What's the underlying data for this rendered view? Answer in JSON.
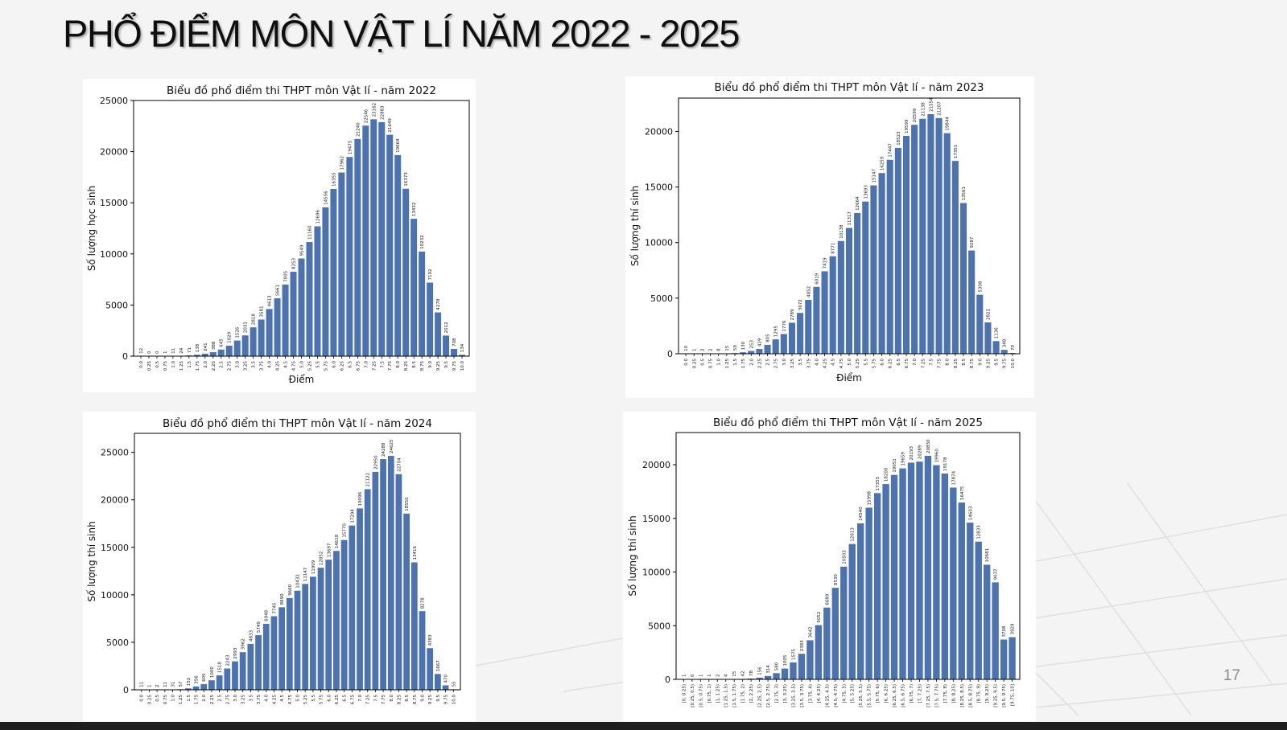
{
  "slide": {
    "title": "PHỔ ĐIỂM MÔN VẬT LÍ NĂM 2022 - 2025",
    "page_number": "17"
  },
  "theme": {
    "bar_color": "#4c72b0"
  },
  "chart_data": [
    {
      "type": "bar",
      "title": "Biểu đồ phổ điểm thi THPT môn Vật lí - năm 2022",
      "xlabel": "Điểm",
      "ylabel": "Số lượng học sinh",
      "ylim": [
        0,
        25000
      ],
      "yticks": [
        0,
        5000,
        10000,
        15000,
        20000,
        25000
      ],
      "categories": [
        "0.0",
        "0.25",
        "0.5",
        "0.75",
        "1.0",
        "1.25",
        "1.5",
        "1.75",
        "2.0",
        "2.25",
        "2.5",
        "2.75",
        "3.0",
        "3.25",
        "3.5",
        "3.75",
        "4.0",
        "4.25",
        "4.5",
        "4.75",
        "5.0",
        "5.25",
        "5.5",
        "5.75",
        "6.0",
        "6.25",
        "6.5",
        "6.75",
        "7.0",
        "7.25",
        "7.5",
        "7.75",
        "8.0",
        "8.25",
        "8.5",
        "8.75",
        "9.0",
        "9.25",
        "9.5",
        "9.75",
        "10.0"
      ],
      "values": [
        12,
        0,
        0,
        1,
        11,
        24,
        71,
        138,
        241,
        388,
        645,
        1029,
        1526,
        2031,
        2818,
        3581,
        4613,
        5661,
        7005,
        8253,
        9549,
        11160,
        12696,
        14556,
        16355,
        17962,
        19475,
        21240,
        22546,
        23162,
        22883,
        21649,
        19664,
        16373,
        13432,
        10232,
        7192,
        4278,
        2012,
        708,
        134
      ]
    },
    {
      "type": "bar",
      "title": "Biểu đồ phổ điểm thi THPT môn Vật lí - năm 2023",
      "xlabel": "Điểm",
      "ylabel": "Số lượng thí sinh",
      "ylim": [
        0,
        23000
      ],
      "yticks": [
        0,
        5000,
        10000,
        15000,
        20000
      ],
      "categories": [
        "0.0",
        "0.25",
        "0.5",
        "0.75",
        "1.0",
        "1.25",
        "1.5",
        "1.75",
        "2.0",
        "2.25",
        "2.5",
        "2.75",
        "3.0",
        "3.25",
        "3.5",
        "3.75",
        "4.0",
        "4.25",
        "4.5",
        "4.75",
        "5.0",
        "5.25",
        "5.5",
        "5.75",
        "6.0",
        "6.25",
        "6.5",
        "6.75",
        "7.0",
        "7.25",
        "7.5",
        "7.75",
        "8.0",
        "8.25",
        "8.5",
        "8.75",
        "9.0",
        "9.25",
        "9.5",
        "9.75",
        "10.0"
      ],
      "values": [
        10,
        1,
        2,
        2,
        8,
        15,
        59,
        130,
        253,
        429,
        805,
        1295,
        1776,
        2789,
        3672,
        4852,
        6019,
        7419,
        8771,
        10138,
        11317,
        12664,
        13693,
        15147,
        16259,
        17447,
        18523,
        19599,
        20599,
        21138,
        21554,
        21207,
        19844,
        17351,
        13561,
        9287,
        5308,
        2822,
        1136,
        348,
        70
      ]
    },
    {
      "type": "bar",
      "title": "Biểu đồ phổ điểm thi THPT môn Vật lí - năm 2024",
      "xlabel": "",
      "ylabel": "Số lượng thí sinh",
      "ylim": [
        0,
        27000
      ],
      "yticks": [
        0,
        5000,
        10000,
        15000,
        20000,
        25000
      ],
      "categories": [
        "0.0",
        "0.25",
        "0.5",
        "0.75",
        "1.0",
        "1.25",
        "1.5",
        "1.75",
        "2.0",
        "2.25",
        "2.5",
        "2.75",
        "3.0",
        "3.25",
        "3.5",
        "3.75",
        "4.0",
        "4.25",
        "4.5",
        "4.75",
        "5.0",
        "5.25",
        "5.5",
        "5.75",
        "6.0",
        "6.25",
        "6.5",
        "6.75",
        "7.0",
        "7.25",
        "7.5",
        "7.75",
        "8.0",
        "8.25",
        "8.5",
        "8.75",
        "9.0",
        "9.25",
        "9.5",
        "9.75",
        "10.0"
      ],
      "values": [
        11,
        1,
        2,
        11,
        31,
        57,
        152,
        356,
        605,
        1000,
        1518,
        2243,
        2993,
        3962,
        4833,
        5749,
        6948,
        7745,
        8690,
        9660,
        10432,
        11147,
        11909,
        12852,
        13697,
        14618,
        15770,
        17294,
        19096,
        21122,
        22950,
        24288,
        24625,
        22704,
        18550,
        13416,
        8278,
        4383,
        1667,
        470,
        55
      ]
    },
    {
      "type": "bar",
      "title": "Biểu đồ phổ điểm thi THPT môn Vật lí - năm 2025",
      "xlabel": "",
      "ylabel": "Số lượng thí sinh",
      "ylim": [
        0,
        23000
      ],
      "yticks": [
        0,
        5000,
        10000,
        15000,
        20000
      ],
      "categories": [
        "[0, 0.25)",
        "[0.25, 0.5)",
        "[0.5, 0.75)",
        "[0.75, 1)",
        "[1, 1.25)",
        "[1.25, 1.5)",
        "[1.5, 1.75)",
        "[1.75, 2)",
        "[2, 2.25)",
        "[2.25, 2.5)",
        "[2.5, 2.75)",
        "[2.75, 3)",
        "[3, 3.25)",
        "[3.25, 3.5)",
        "[3.5, 3.75)",
        "[3.75, 4)",
        "[4, 4.25)",
        "[4.25, 4.5)",
        "[4.5, 4.75)",
        "[4.75, 5)",
        "[5, 5.25)",
        "[5.25, 5.5)",
        "[5.5, 5.75)",
        "[5.75, 6)",
        "[6, 6.25)",
        "[6.25, 6.5)",
        "[6.5, 6.75)",
        "[6.75, 7)",
        "[7, 7.25)",
        "[7.25, 7.5)",
        "[7.5, 7.75)",
        "[7.75, 8)",
        "[8, 8.25)",
        "[8.25, 8.5)",
        "[8.5, 8.75)",
        "[8.75, 9)",
        "[9, 9.25)",
        "[9.25, 9.5)",
        "[9.5, 9.75)",
        "[9.75, 10]"
      ],
      "values": [
        1,
        0,
        1,
        1,
        2,
        4,
        15,
        42,
        78,
        156,
        314,
        580,
        1005,
        1575,
        2383,
        3642,
        5052,
        6689,
        8530,
        10503,
        12613,
        14540,
        15998,
        17355,
        18200,
        19051,
        19659,
        20193,
        20289,
        20830,
        19960,
        19178,
        17874,
        16475,
        14603,
        12833,
        10681,
        9037,
        3708,
        3929
      ]
    }
  ]
}
